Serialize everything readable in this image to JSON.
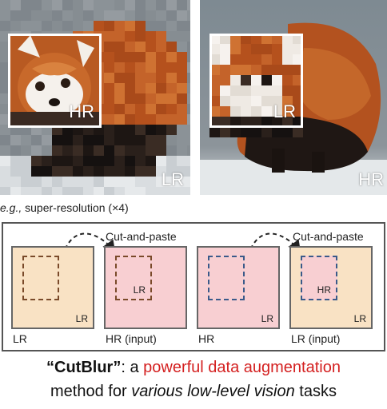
{
  "photos": {
    "left": {
      "box_label": "HR",
      "corner_label": "LR"
    },
    "right": {
      "box_label": "LR",
      "corner_label": "HR"
    }
  },
  "caption": {
    "prefix": "e.g.,",
    "text": " super-resolution (×4)"
  },
  "panel": {
    "left_group": {
      "cut_and_paste": "Cut-and-paste",
      "tile1": {
        "tile_label": "LR",
        "caption": "LR"
      },
      "tile2": {
        "inner_label": "LR",
        "caption": "HR (input)"
      }
    },
    "right_group": {
      "cut_and_paste": "Cut-and-paste",
      "tile3": {
        "tile_label": "LR",
        "caption": "HR"
      },
      "tile4": {
        "inner_label": "HR",
        "tile_label": "LR",
        "caption": "LR (input)"
      }
    }
  },
  "headline": {
    "name": "“CutBlur”",
    "colon": ": a ",
    "highlight": "powerful data augmentation",
    "line2_a": "method for ",
    "line2_italic": "various low-level vision",
    "line2_b": " tasks"
  },
  "colors": {
    "lr_tile": "#f9e2c4",
    "hr_tile": "#f8cfd2",
    "highlight": "#d42020"
  }
}
